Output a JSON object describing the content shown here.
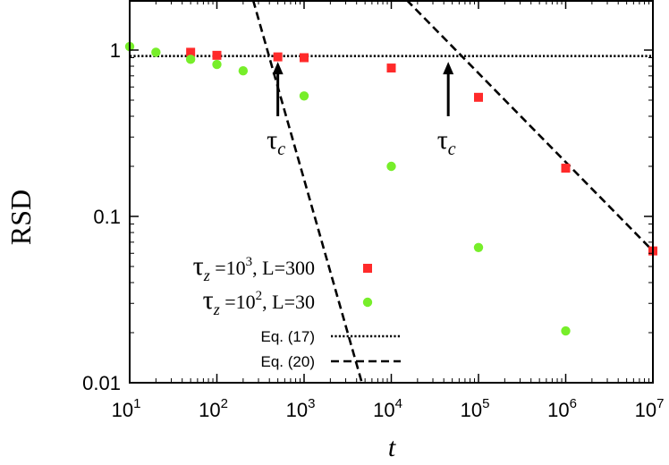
{
  "chart_data": {
    "type": "scatter",
    "xlabel": "t",
    "ylabel": "RSD",
    "xscale": "log",
    "yscale": "log",
    "xlim": [
      10,
      10000000
    ],
    "ylim": [
      0.01,
      2
    ],
    "grid": false,
    "legend_position": "bottom-left",
    "x_ticks": [
      {
        "value": 10,
        "base": "10",
        "exp": "1"
      },
      {
        "value": 100,
        "base": "10",
        "exp": "2"
      },
      {
        "value": 1000,
        "base": "10",
        "exp": "3"
      },
      {
        "value": 10000,
        "base": "10",
        "exp": "4"
      },
      {
        "value": 100000,
        "base": "10",
        "exp": "5"
      },
      {
        "value": 1000000,
        "base": "10",
        "exp": "6"
      },
      {
        "value": 10000000,
        "base": "10",
        "exp": "7"
      }
    ],
    "y_ticks": [
      {
        "value": 0.01,
        "label": "0.01"
      },
      {
        "value": 0.1,
        "label": "0.1"
      },
      {
        "value": 1,
        "label": "1"
      }
    ],
    "series": [
      {
        "name": "τz=10³, L=300",
        "marker": "square",
        "color": "#ff2a2a",
        "points": [
          {
            "x": 50,
            "y": 0.97
          },
          {
            "x": 100,
            "y": 0.93
          },
          {
            "x": 500,
            "y": 0.91
          },
          {
            "x": 1000,
            "y": 0.9
          },
          {
            "x": 10000,
            "y": 0.78
          },
          {
            "x": 100000,
            "y": 0.52
          },
          {
            "x": 1000000,
            "y": 0.195
          },
          {
            "x": 10000000,
            "y": 0.062
          }
        ]
      },
      {
        "name": "τz=10², L=30",
        "marker": "circle",
        "color": "#77ee2a",
        "points": [
          {
            "x": 10,
            "y": 1.05
          },
          {
            "x": 20,
            "y": 0.97
          },
          {
            "x": 50,
            "y": 0.88
          },
          {
            "x": 100,
            "y": 0.82
          },
          {
            "x": 200,
            "y": 0.75
          },
          {
            "x": 1000,
            "y": 0.53
          },
          {
            "x": 10000,
            "y": 0.2
          },
          {
            "x": 100000,
            "y": 0.065
          },
          {
            "x": 1000000,
            "y": 0.0205
          }
        ]
      }
    ],
    "lines": [
      {
        "name": "Eq. (17)",
        "style": "dotted",
        "points": [
          {
            "x": 10,
            "y": 0.92
          },
          {
            "x": 10000000,
            "y": 0.92
          }
        ]
      },
      {
        "name": "Eq. (20)",
        "style": "dashed",
        "points": [
          {
            "x": 260,
            "y": 2
          },
          {
            "x": 4600,
            "y": 0.01
          }
        ]
      },
      {
        "name": "Eq. (20)",
        "style": "dashed",
        "points": [
          {
            "x": 15000,
            "y": 2
          },
          {
            "x": 10000000,
            "y": 0.062
          }
        ]
      }
    ],
    "annotations": [
      {
        "text": "τc",
        "x": 500,
        "y_tip": 0.85,
        "y_tail": 0.4
      },
      {
        "text": "τc",
        "x": 45000,
        "y_tip": 0.85,
        "y_tail": 0.4
      }
    ],
    "legend": [
      {
        "label_base": "τ",
        "label_sub": "z",
        "label_rest": " =10",
        "label_sup": "3",
        "label_tail": ", L=300",
        "marker": "square",
        "color": "#ff2a2a"
      },
      {
        "label_base": "τ",
        "label_sub": "z",
        "label_rest": " =10",
        "label_sup": "2",
        "label_tail": ", L=30",
        "marker": "circle",
        "color": "#77ee2a"
      },
      {
        "label": "Eq. (17)",
        "style": "dotted"
      },
      {
        "label": "Eq. (20)",
        "style": "dashed"
      }
    ]
  }
}
